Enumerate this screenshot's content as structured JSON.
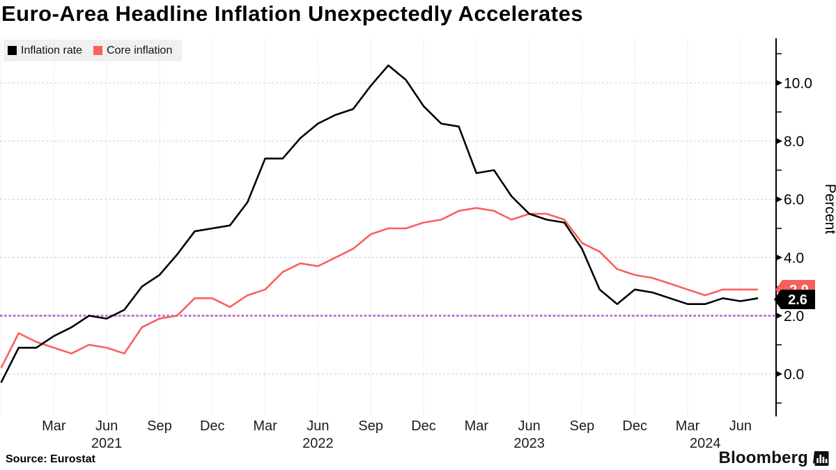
{
  "title": "Euro-Area Headline Inflation Unexpectedly Accelerates",
  "source": "Source: Eurostat",
  "brand": {
    "name": "Bloomberg",
    "icon": "bloomberg-terminal-icon"
  },
  "legend": {
    "items": [
      {
        "label": "Inflation rate",
        "color": "#000000"
      },
      {
        "label": "Core inflation",
        "color": "#f7615d"
      }
    ]
  },
  "y_axis": {
    "title": "Percent",
    "major_ticks": [
      {
        "v": 0,
        "label": "0.0"
      },
      {
        "v": 2,
        "label": "2.0"
      },
      {
        "v": 4,
        "label": "4.0"
      },
      {
        "v": 6,
        "label": "6.0"
      },
      {
        "v": 8,
        "label": "8.0"
      },
      {
        "v": 10,
        "label": "10.0"
      }
    ],
    "minor_ticks": [
      -1,
      1,
      3,
      5,
      7,
      9,
      11
    ]
  },
  "x_axis": {
    "ticks": [
      {
        "label": "Mar",
        "i": 3
      },
      {
        "label": "Jun",
        "i": 6
      },
      {
        "label": "Sep",
        "i": 9
      },
      {
        "label": "Dec",
        "i": 12
      },
      {
        "label": "Mar",
        "i": 15
      },
      {
        "label": "Jun",
        "i": 18
      },
      {
        "label": "Sep",
        "i": 21
      },
      {
        "label": "Dec",
        "i": 24
      },
      {
        "label": "Mar",
        "i": 27
      },
      {
        "label": "Jun",
        "i": 30
      },
      {
        "label": "Sep",
        "i": 33
      },
      {
        "label": "Dec",
        "i": 36
      },
      {
        "label": "Mar",
        "i": 39
      },
      {
        "label": "Jun",
        "i": 42
      }
    ],
    "years": [
      {
        "label": "2021",
        "i": 6
      },
      {
        "label": "2022",
        "i": 18
      },
      {
        "label": "2023",
        "i": 30
      },
      {
        "label": "2024",
        "i": 40
      }
    ]
  },
  "target_line": {
    "value": 2.0,
    "color": "#c06edb",
    "style": "dotted"
  },
  "end_labels": [
    {
      "text": "2.9",
      "bg": "#f7615d",
      "fg": "#ffffff",
      "value": 2.9
    },
    {
      "text": "2.6",
      "bg": "#000000",
      "fg": "#ffffff",
      "value": 2.6
    }
  ],
  "chart_data": {
    "type": "line",
    "title": "Euro-Area Headline Inflation Unexpectedly Accelerates",
    "xlabel": "",
    "ylabel": "Percent",
    "ylim": [
      -1.5,
      11.5
    ],
    "grid": true,
    "legend_position": "top-left",
    "categories": [
      "2020-12",
      "2021-01",
      "2021-02",
      "2021-03",
      "2021-04",
      "2021-05",
      "2021-06",
      "2021-07",
      "2021-08",
      "2021-09",
      "2021-10",
      "2021-11",
      "2021-12",
      "2022-01",
      "2022-02",
      "2022-03",
      "2022-04",
      "2022-05",
      "2022-06",
      "2022-07",
      "2022-08",
      "2022-09",
      "2022-10",
      "2022-11",
      "2022-12",
      "2023-01",
      "2023-02",
      "2023-03",
      "2023-04",
      "2023-05",
      "2023-06",
      "2023-07",
      "2023-08",
      "2023-09",
      "2023-10",
      "2023-11",
      "2023-12",
      "2024-01",
      "2024-02",
      "2024-03",
      "2024-04",
      "2024-05",
      "2024-06",
      "2024-07"
    ],
    "series": [
      {
        "name": "Inflation rate",
        "color": "#000000",
        "values": [
          -0.3,
          0.9,
          0.9,
          1.3,
          1.6,
          2.0,
          1.9,
          2.2,
          3.0,
          3.4,
          4.1,
          4.9,
          5.0,
          5.1,
          5.9,
          7.4,
          7.4,
          8.1,
          8.6,
          8.9,
          9.1,
          9.9,
          10.6,
          10.1,
          9.2,
          8.6,
          8.5,
          6.9,
          7.0,
          6.1,
          5.5,
          5.3,
          5.2,
          4.3,
          2.9,
          2.4,
          2.9,
          2.8,
          2.6,
          2.4,
          2.4,
          2.6,
          2.5,
          2.6
        ]
      },
      {
        "name": "Core inflation",
        "color": "#f7615d",
        "values": [
          0.2,
          1.4,
          1.1,
          0.9,
          0.7,
          1.0,
          0.9,
          0.7,
          1.6,
          1.9,
          2.0,
          2.6,
          2.6,
          2.3,
          2.7,
          2.9,
          3.5,
          3.8,
          3.7,
          4.0,
          4.3,
          4.8,
          5.0,
          5.0,
          5.2,
          5.3,
          5.6,
          5.7,
          5.6,
          5.3,
          5.5,
          5.5,
          5.3,
          4.5,
          4.2,
          3.6,
          3.4,
          3.3,
          3.1,
          2.9,
          2.7,
          2.9,
          2.9,
          2.9
        ]
      }
    ],
    "annotations": {
      "target_line_value": 2.0,
      "last_value_headline": 2.6,
      "last_value_core": 2.9
    }
  }
}
